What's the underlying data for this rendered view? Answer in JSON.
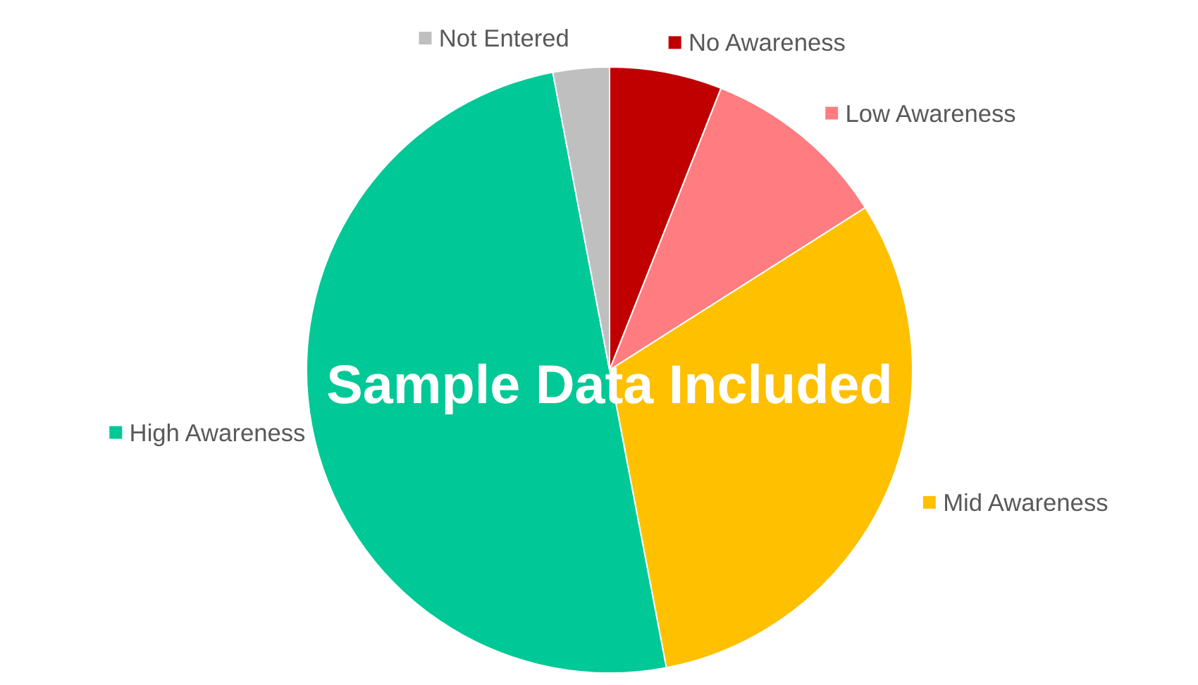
{
  "chart_data": {
    "type": "pie",
    "categories": [
      "No Awareness",
      "Low Awareness",
      "Mid Awareness",
      "High Awareness",
      "Not Entered"
    ],
    "values": [
      6,
      10,
      31,
      50,
      3
    ],
    "colors": [
      "#c00000",
      "#ff7c80",
      "#ffc000",
      "#00c896",
      "#bfbfbf"
    ],
    "legend": "top right",
    "annotations": [
      "Sample Data Included"
    ]
  }
}
